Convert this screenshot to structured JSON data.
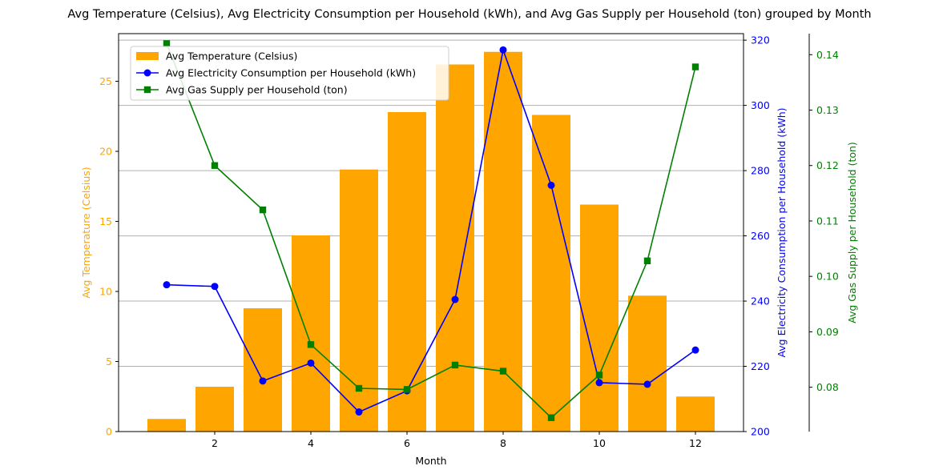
{
  "chart_data": {
    "type": "bar",
    "title": "Avg Temperature (Celsius), Avg Electricity Consumption per Household (kWh), and Avg Gas Supply per Household (ton) grouped by Month",
    "xlabel": "Month",
    "x": [
      1,
      2,
      3,
      4,
      5,
      6,
      7,
      8,
      9,
      10,
      11,
      12
    ],
    "xticks": [
      2,
      4,
      6,
      8,
      10,
      12
    ],
    "xlim": [
      0,
      13
    ],
    "grid": "horizontal",
    "legend_position": "top-left",
    "axes": [
      {
        "side": "left",
        "label": "Avg Temperature (Celsius)",
        "color": "#FFA500",
        "ylim": [
          0,
          28.4
        ],
        "ticks": [
          0,
          5,
          10,
          15,
          20,
          25
        ]
      },
      {
        "side": "right",
        "label": "Avg Electricity Consumption per Household (kWh)",
        "color": "#0000FF",
        "ylim": [
          200,
          322
        ],
        "ticks": [
          200,
          220,
          240,
          260,
          280,
          300,
          320
        ]
      },
      {
        "side": "right-outer",
        "label": "Avg Gas Supply per Household (ton)",
        "color": "#008000",
        "ylim": [
          0.072,
          0.1438
        ],
        "ticks": [
          "0.08",
          "0.09",
          "0.10",
          "0.11",
          "0.12",
          "0.13",
          "0.14"
        ]
      }
    ],
    "series": [
      {
        "name": "Avg Temperature (Celsius)",
        "kind": "bar",
        "axis": 0,
        "color": "#FFA500",
        "values": [
          0.9,
          3.2,
          8.8,
          14.0,
          18.7,
          22.8,
          26.2,
          27.1,
          22.6,
          16.2,
          9.7,
          2.5
        ]
      },
      {
        "name": "Avg Electricity Consumption per Household (kWh)",
        "kind": "line",
        "marker": "circle",
        "axis": 1,
        "color": "#0000FF",
        "values": [
          245,
          244.5,
          215.5,
          221,
          206,
          212.5,
          240.5,
          317,
          275.5,
          215,
          214.5,
          225
        ]
      },
      {
        "name": "Avg Gas Supply per Household (ton)",
        "kind": "line",
        "marker": "square",
        "axis": 2,
        "color": "#008000",
        "values": [
          0.142,
          0.12,
          0.112,
          0.0877,
          0.0798,
          0.0796,
          0.084,
          0.0829,
          0.0745,
          0.0822,
          0.1028,
          0.1378
        ]
      }
    ]
  }
}
